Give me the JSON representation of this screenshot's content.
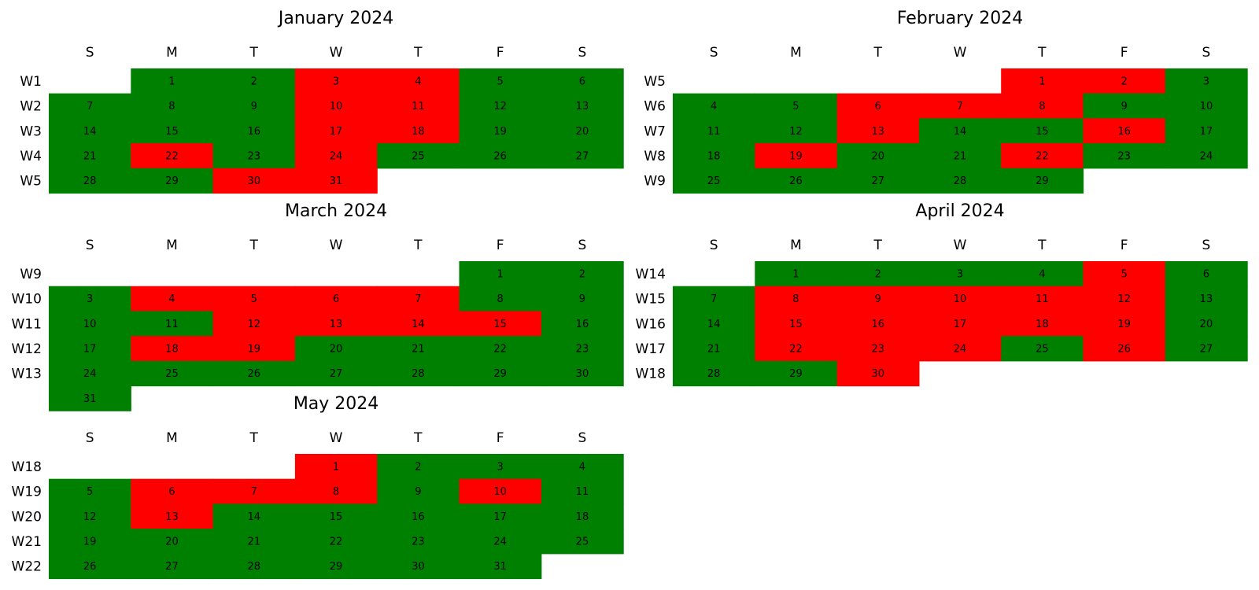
{
  "colors": {
    "good": "#008000",
    "bad": "#ff0000",
    "background": "#ffffff",
    "text": "#000000"
  },
  "weekday_headers": [
    "S",
    "M",
    "T",
    "W",
    "T",
    "F",
    "S"
  ],
  "chart_data": [
    {
      "type": "heatmap",
      "title": "January 2024",
      "weeks": [
        "W1",
        "W2",
        "W3",
        "W4",
        "W5"
      ],
      "first_weekday_index": 1,
      "days_in_month": 31,
      "bad_days": [
        3,
        4,
        10,
        11,
        17,
        18,
        22,
        24,
        30,
        31
      ]
    },
    {
      "type": "heatmap",
      "title": "February 2024",
      "weeks": [
        "W5",
        "W6",
        "W7",
        "W8",
        "W9"
      ],
      "first_weekday_index": 4,
      "days_in_month": 29,
      "bad_days": [
        1,
        2,
        6,
        7,
        8,
        13,
        16,
        19,
        22
      ]
    },
    {
      "type": "heatmap",
      "title": "March 2024",
      "weeks": [
        "W9",
        "W10",
        "W11",
        "W12",
        "W13"
      ],
      "first_weekday_index": 5,
      "days_in_month": 31,
      "bad_days": [
        4,
        5,
        6,
        7,
        12,
        13,
        14,
        15,
        18,
        19
      ]
    },
    {
      "type": "heatmap",
      "title": "April 2024",
      "weeks": [
        "W14",
        "W15",
        "W16",
        "W17",
        "W18"
      ],
      "first_weekday_index": 1,
      "days_in_month": 30,
      "bad_days": [
        5,
        8,
        9,
        10,
        11,
        12,
        15,
        16,
        17,
        18,
        19,
        22,
        23,
        24,
        26,
        30
      ]
    },
    {
      "type": "heatmap",
      "title": "May 2024",
      "weeks": [
        "W18",
        "W19",
        "W20",
        "W21",
        "W22"
      ],
      "first_weekday_index": 3,
      "days_in_month": 31,
      "bad_days": [
        1,
        6,
        7,
        8,
        10,
        13
      ]
    }
  ]
}
